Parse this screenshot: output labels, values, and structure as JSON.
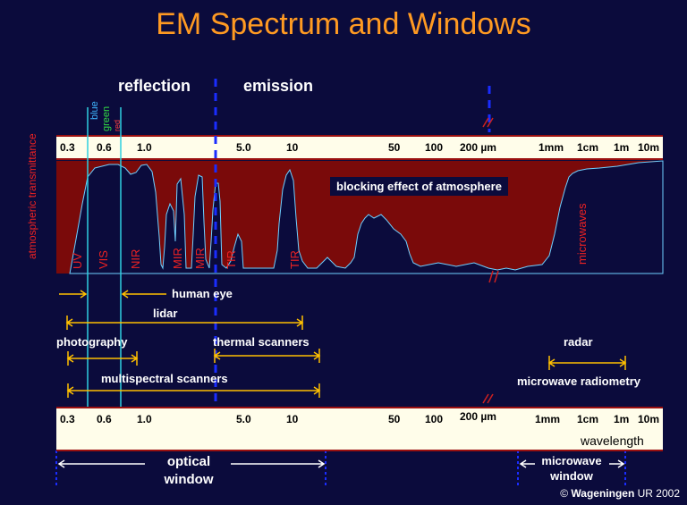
{
  "title": "EM Spectrum and Windows",
  "headings": {
    "reflection": "reflection",
    "emission": "emission"
  },
  "color_bands": {
    "blue": "blue",
    "green": "green",
    "red": "red"
  },
  "scale_ticks": [
    "0.3",
    "0.6",
    "1.0",
    "5.0",
    "10",
    "50",
    "100",
    "200 µm",
    "1mm",
    "1cm",
    "1m",
    "10m"
  ],
  "transmittance": {
    "axis_label": "atmospheric transmittance",
    "note": "blocking effect of atmosphere",
    "windows": [
      "UV",
      "VIS",
      "NIR",
      "MIR",
      "MIR",
      "TIR",
      "TIR",
      "microwaves"
    ]
  },
  "instruments": {
    "human_eye": "human eye",
    "lidar": "lidar",
    "photography": "photography",
    "thermal_scanners": "thermal scanners",
    "radar": "radar",
    "multispectral_scanners": "multispectral scanners",
    "microwave_radiometry": "microwave radiometry"
  },
  "wavelength_label": "wavelength",
  "optical_window": "optical window",
  "microwave_window": "microwave window",
  "footer": {
    "copyright": "©",
    "org": "Wageningen",
    "rest": " UR 2002"
  },
  "colors": {
    "background": "#0b0b3c",
    "title": "#ff9a22",
    "absorption": "#7a0a0a",
    "bar": "#fffdea",
    "bracket": "#ffc000",
    "divider": "#1a2cff",
    "band_line": "#2fd0e0"
  }
}
